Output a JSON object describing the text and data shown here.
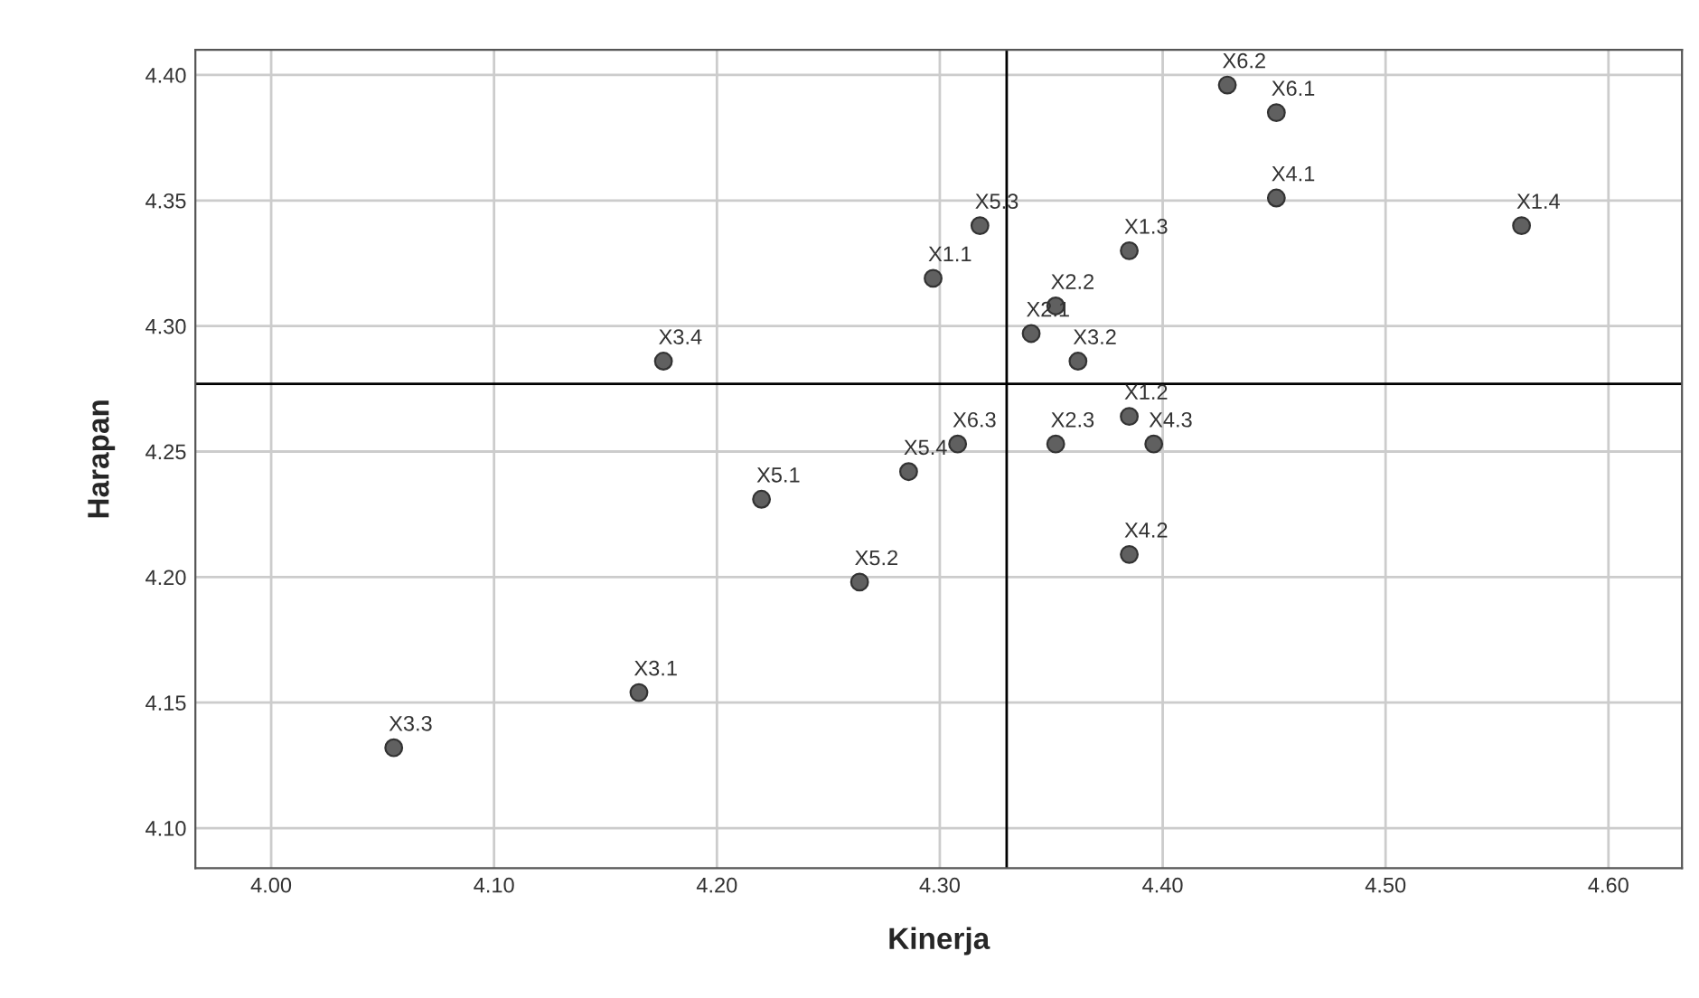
{
  "chart_data": {
    "type": "scatter",
    "xlabel": "Kinerja",
    "ylabel": "Harapan",
    "series": [
      {
        "color": "#606060",
        "x": [
          4.297,
          4.385,
          4.385,
          4.561,
          4.341,
          4.352,
          4.352,
          4.165,
          4.362,
          4.055,
          4.176,
          4.451,
          4.385,
          4.396,
          4.22,
          4.264,
          4.318,
          4.286,
          4.451,
          4.429,
          4.308
        ],
        "values": [
          4.319,
          4.264,
          4.33,
          4.34,
          4.297,
          4.308,
          4.253,
          4.154,
          4.286,
          4.132,
          4.286,
          4.351,
          4.209,
          4.253,
          4.231,
          4.198,
          4.34,
          4.242,
          4.385,
          4.396,
          4.253
        ]
      }
    ],
    "annotations": [
      {
        "text": "X1.1",
        "x": 4.297,
        "y": 4.319
      },
      {
        "text": "X1.2",
        "x": 4.385,
        "y": 4.264
      },
      {
        "text": "X1.3",
        "x": 4.385,
        "y": 4.33
      },
      {
        "text": "X1.4",
        "x": 4.561,
        "y": 4.34
      },
      {
        "text": "X2.1",
        "x": 4.341,
        "y": 4.297
      },
      {
        "text": "X2.2",
        "x": 4.352,
        "y": 4.308
      },
      {
        "text": "X2.3",
        "x": 4.352,
        "y": 4.253
      },
      {
        "text": "X3.1",
        "x": 4.165,
        "y": 4.154
      },
      {
        "text": "X3.2",
        "x": 4.362,
        "y": 4.286
      },
      {
        "text": "X3.3",
        "x": 4.055,
        "y": 4.132
      },
      {
        "text": "X3.4",
        "x": 4.176,
        "y": 4.286
      },
      {
        "text": "X4.1",
        "x": 4.451,
        "y": 4.351
      },
      {
        "text": "X4.2",
        "x": 4.385,
        "y": 4.209
      },
      {
        "text": "X4.3",
        "x": 4.396,
        "y": 4.253
      },
      {
        "text": "X5.1",
        "x": 4.22,
        "y": 4.231
      },
      {
        "text": "X5.2",
        "x": 4.264,
        "y": 4.198
      },
      {
        "text": "X5.3",
        "x": 4.318,
        "y": 4.34
      },
      {
        "text": "X5.4",
        "x": 4.286,
        "y": 4.242
      },
      {
        "text": "X6.1",
        "x": 4.451,
        "y": 4.385
      },
      {
        "text": "X6.2",
        "x": 4.429,
        "y": 4.396
      },
      {
        "text": "X6.3",
        "x": 4.308,
        "y": 4.253
      }
    ],
    "ref_lines": [
      {
        "axis": "x",
        "value": 4.33,
        "color": "#000000"
      },
      {
        "axis": "y",
        "value": 4.277,
        "color": "#000000"
      }
    ],
    "xlim": [
      3.966,
      4.633
    ],
    "ylim": [
      4.084,
      4.41
    ],
    "xticks": [
      {
        "value": 4.0,
        "label": "4.00"
      },
      {
        "value": 4.1,
        "label": "4.10"
      },
      {
        "value": 4.2,
        "label": "4.20"
      },
      {
        "value": 4.3,
        "label": "4.30"
      },
      {
        "value": 4.4,
        "label": "4.40"
      },
      {
        "value": 4.5,
        "label": "4.50"
      },
      {
        "value": 4.6,
        "label": "4.60"
      }
    ],
    "yticks": [
      {
        "value": 4.1,
        "label": "4.10"
      },
      {
        "value": 4.15,
        "label": "4.15"
      },
      {
        "value": 4.2,
        "label": "4.20"
      },
      {
        "value": 4.25,
        "label": "4.25"
      },
      {
        "value": 4.3,
        "label": "4.30"
      },
      {
        "value": 4.35,
        "label": "4.35"
      },
      {
        "value": 4.4,
        "label": "4.40"
      }
    ],
    "grid": true,
    "marker": "circle"
  }
}
